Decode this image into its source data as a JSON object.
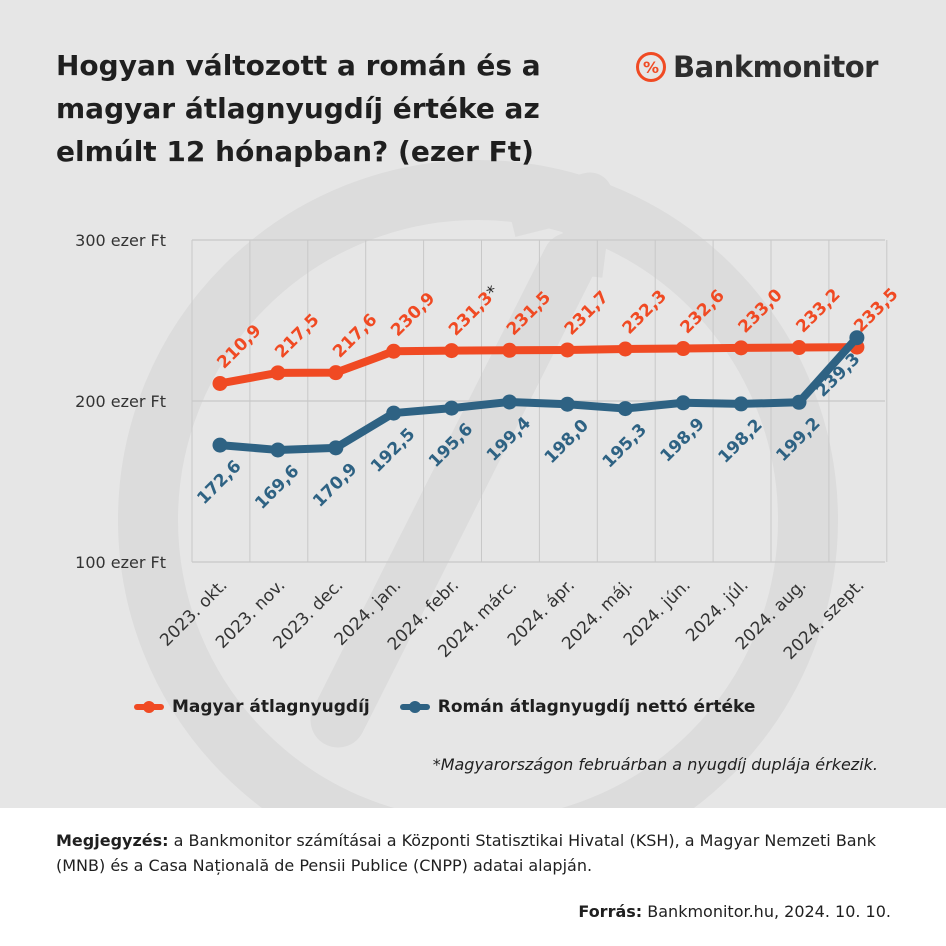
{
  "title": "Hogyan változott a román és a magyar átlagnyugdíj értéke az elmúlt 12 hónapban? (ezer Ft)",
  "brand": {
    "icon": "percent-circle-icon",
    "symbol": "%",
    "name": "Bankmonitor"
  },
  "colors": {
    "orange": "#f04a23",
    "blue": "#2e6283",
    "grid": "#c8c8c8",
    "background": "#e6e6e6"
  },
  "chart_data": {
    "type": "line",
    "categories": [
      "2023. okt.",
      "2023. nov.",
      "2023. dec.",
      "2024. jan.",
      "2024. febr.",
      "2024. márc.",
      "2024. ápr.",
      "2024. máj.",
      "2024. jún.",
      "2024. júl.",
      "2024. aug.",
      "2024. szept."
    ],
    "ylim": [
      100,
      300
    ],
    "yticks": [
      300,
      200,
      100
    ],
    "ytick_labels": [
      "300 ezer Ft",
      "200 ezer Ft",
      "100 ezer Ft"
    ],
    "grid": true,
    "legend_position": "bottom",
    "series": [
      {
        "name": "Magyar átlagnyugdíj",
        "color": "#f04a23",
        "values": [
          210.9,
          217.5,
          217.6,
          230.9,
          231.3,
          231.5,
          231.7,
          232.3,
          232.6,
          233.0,
          233.2,
          233.5
        ],
        "labels": [
          "210,9",
          "217,5",
          "217,6",
          "230,9",
          "231,3*",
          "231,5",
          "231,7",
          "232,3",
          "232,6",
          "233,0",
          "233,2",
          "233,5"
        ]
      },
      {
        "name": "Román átlagnyugdíj nettó értéke",
        "color": "#2e6283",
        "values": [
          172.6,
          169.6,
          170.9,
          192.5,
          195.6,
          199.4,
          198.0,
          195.3,
          198.9,
          198.2,
          199.2,
          239.3
        ],
        "labels": [
          "172,6",
          "169,6",
          "170,9",
          "192,5",
          "195,6",
          "199,4",
          "198,0",
          "195,3",
          "198,9",
          "198,2",
          "199,2",
          "239,3"
        ]
      }
    ]
  },
  "footnote": "*Magyarországon februárban a nyugdíj duplája érkezik.",
  "note": {
    "label": "Megjegyzés:",
    "text": " a Bankmonitor számításai a Központi Statisztikai Hivatal (KSH), a Magyar Nemzeti Bank (MNB) és a Casa Națională de Pensii Publice (CNPP) adatai alapján."
  },
  "source": {
    "label": "Forrás:",
    "text": " Bankmonitor.hu, 2024. 10. 10."
  }
}
